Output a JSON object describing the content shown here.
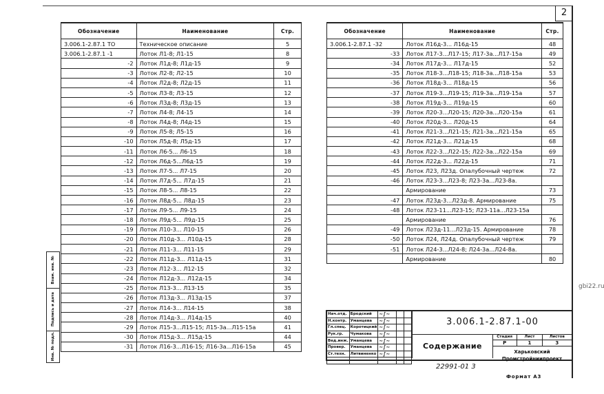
{
  "sheet_number": "2",
  "watermark": "gbi22.ru",
  "headers": {
    "designation": "Обозначение",
    "name": "Наименование",
    "page": "Стр.",
    "page_right": "Стр."
  },
  "left_rows": [
    [
      "3.006.1-2.87.1 ТО",
      "Техническое описание",
      "5"
    ],
    [
      "3.006.1-2.87.1 -1",
      "Лоток Л1-8; Л1-15",
      "8"
    ],
    [
      "-2",
      "Лоток Л1д-8; Л1д-15",
      "9"
    ],
    [
      "-3",
      "Лоток Л2-8; Л2-15",
      "10"
    ],
    [
      "-4",
      "Лоток Л2д-8; Л2д-15",
      "11"
    ],
    [
      "-5",
      "Лоток Л3-8; Л3-15",
      "12"
    ],
    [
      "-6",
      "Лоток Л3д-8; Л3д-15",
      "13"
    ],
    [
      "-7",
      "Лоток Л4-8; Л4-15",
      "14"
    ],
    [
      "-8",
      "Лоток Л4д-8; Л4д-15",
      "15"
    ],
    [
      "-9",
      "Лоток Л5-8; Л5-15",
      "16"
    ],
    [
      "-10",
      "Лоток Л5д-8; Л5д-15",
      "17"
    ],
    [
      "-11",
      "Лоток Л6-5... Л6-15",
      "18"
    ],
    [
      "-12",
      "Лоток Л6д-5...Л6д-15",
      "19"
    ],
    [
      "-13",
      "Лоток Л7-5... Л7-15",
      "20"
    ],
    [
      "-14",
      "Лоток Л7д-5... Л7д-15",
      "21"
    ],
    [
      "-15",
      "Лоток Л8-5... Л8-15",
      "22"
    ],
    [
      "-16",
      "Лоток Л8д-5... Л8д-15",
      "23"
    ],
    [
      "-17",
      "Лоток Л9-5... Л9-15",
      "24"
    ],
    [
      "-18",
      "Лоток Л9д-5... Л9д-15",
      "25"
    ],
    [
      "-19",
      "Лоток Л10-3... Л10-15",
      "26"
    ],
    [
      "-20",
      "Лоток Л10д-3... Л10д-15",
      "28"
    ],
    [
      "-21",
      "Лоток Л11-3... Л11-15",
      "29"
    ],
    [
      "-22",
      "Лоток Л11д-3... Л11д-15",
      "31"
    ],
    [
      "-23",
      "Лоток Л12-3... Л12-15",
      "32"
    ],
    [
      "-24",
      "Лоток Л12д-3... Л12д-15",
      "34"
    ],
    [
      "-25",
      "Лоток Л13-3... Л13-15",
      "35"
    ],
    [
      "-26",
      "Лоток Л13д-3... Л13д-15",
      "37"
    ],
    [
      "-27",
      "Лоток Л14-3... Л14-15",
      "38"
    ],
    [
      "-28",
      "Лоток Л14д-3... Л14д-15",
      "40"
    ],
    [
      "-29",
      "Лоток Л15-3...Л15-15; Л15-3а...Л15-15а",
      "41"
    ],
    [
      "-30",
      "Лоток Л15д-3... Л15д-15",
      "44"
    ],
    [
      "-31",
      "Лоток Л16-3...Л16-15; Л16-3а...Л16-15а",
      "45"
    ]
  ],
  "right_rows": [
    [
      "3.006.1-2.87.1 -32",
      "Лоток Л16д-3... Л16д-15",
      "48"
    ],
    [
      "-33",
      "Лоток Л17-3...Л17-15; Л17-3а...Л17-15а",
      "49"
    ],
    [
      "-34",
      "Лоток Л17д-3... Л17д-15",
      "52"
    ],
    [
      "-35",
      "Лоток Л18-3...Л18-15; Л18-3а...Л18-15а",
      "53"
    ],
    [
      "-36",
      "Лоток Л18д-3... Л18д-15",
      "56"
    ],
    [
      "-37",
      "Лоток Л19-3...Л19-15; Л19-3а...Л19-15а",
      "57"
    ],
    [
      "-38",
      "Лоток Л19д-3... Л19д-15",
      "60"
    ],
    [
      "-39",
      "Лоток Л20-3...Л20-15; Л20-3а...Л20-15а",
      "61"
    ],
    [
      "-40",
      "Лоток Л20д-3... Л20д-15",
      "64"
    ],
    [
      "-41",
      "Лоток Л21-3...Л21-15; Л21-3а...Л21-15а",
      "65"
    ],
    [
      "-42",
      "Лоток Л21д-3... Л21д-15",
      "68"
    ],
    [
      "-43",
      "Лоток Л22-3...Л22-15; Л22-3а...Л22-15а",
      "69"
    ],
    [
      "-44",
      "Лоток Л22д-3... Л22д-15",
      "71"
    ],
    [
      "-45",
      "Лоток Л23, Л23д. Опалубочный чертеж",
      "72"
    ],
    [
      "-46",
      "Лоток Л23-3...Л23-8; Л23-3а...Л23-8а.",
      ""
    ],
    [
      "",
      "Армирование",
      "73"
    ],
    [
      "-47",
      "Лоток Л23д-3...Л23д-8. Армирование",
      "75"
    ],
    [
      "-48",
      "Лоток Л23-11...Л23-15; Л23-11а...Л23-15а",
      ""
    ],
    [
      "",
      "Армирование",
      "76"
    ],
    [
      "-49",
      "Лоток Л23д-11...Л23д-15. Армирование",
      "78"
    ],
    [
      "-50",
      "Лоток Л24, Л24д. Опалубочный чертеж",
      "79"
    ],
    [
      "-51",
      "Лоток Л24-3...Л24-8; Л24-3а...Л24-8а.",
      ""
    ],
    [
      "",
      "Армирование",
      "80"
    ]
  ],
  "left_stamp": [
    "Инв. № подл.",
    "Подпись и дата",
    "Взам. инв. №"
  ],
  "title_block": {
    "signatures": [
      [
        "Нач.отд.",
        "Бродский"
      ],
      [
        "Н.контр.",
        "Уманцева"
      ],
      [
        "Гл.спец.",
        "Коротицкий"
      ],
      [
        "Рук.гр.",
        "Чумакова"
      ],
      [
        "Вед.инж.",
        "Уманцева"
      ],
      [
        "Провер.",
        "Уманцева"
      ],
      [
        "Ст.техн.",
        "Литвиненко"
      ],
      [
        "",
        ""
      ]
    ],
    "code": "3.006.1-2.87.1-00",
    "title": "Содержание",
    "stage_label": "Стадия",
    "sheet_label": "Лист",
    "sheets_label": "Листов",
    "stage": "Р",
    "sheet": "1",
    "sheets": "3",
    "organization": "Харьковский Промстройниипроект",
    "inventory": "22991-01   3",
    "format": "Формат А3"
  }
}
